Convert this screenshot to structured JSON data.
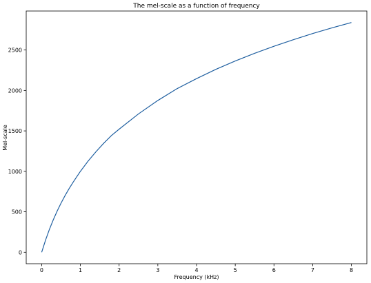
{
  "chart_data": {
    "type": "line",
    "title": "The mel-scale as a function of frequency",
    "xlabel": "Frequency (kHz)",
    "ylabel": "Mel-scale",
    "xlim": [
      -0.4,
      8.4
    ],
    "ylim": [
      -142,
      2982
    ],
    "x_ticks": [
      0,
      1,
      2,
      3,
      4,
      5,
      6,
      7,
      8
    ],
    "y_ticks": [
      0,
      500,
      1000,
      1500,
      2000,
      2500
    ],
    "grid": false,
    "series": [
      {
        "color": "#1f5fa0",
        "x": [
          0,
          0.1,
          0.2,
          0.3,
          0.4,
          0.5,
          0.6,
          0.7,
          0.8,
          0.9,
          1.0,
          1.2,
          1.4,
          1.6,
          1.8,
          2.0,
          2.5,
          3.0,
          3.5,
          4.0,
          4.5,
          5.0,
          5.5,
          6.0,
          6.5,
          7.0,
          7.5,
          8.0
        ],
        "y": [
          0,
          150,
          283,
          402,
          509,
          607,
          697,
          780,
          857,
          929,
          1000,
          1127,
          1241,
          1346,
          1442,
          1521,
          1710,
          1876,
          2023,
          2146,
          2261,
          2364,
          2459,
          2546,
          2627,
          2704,
          2774,
          2840
        ]
      }
    ]
  }
}
